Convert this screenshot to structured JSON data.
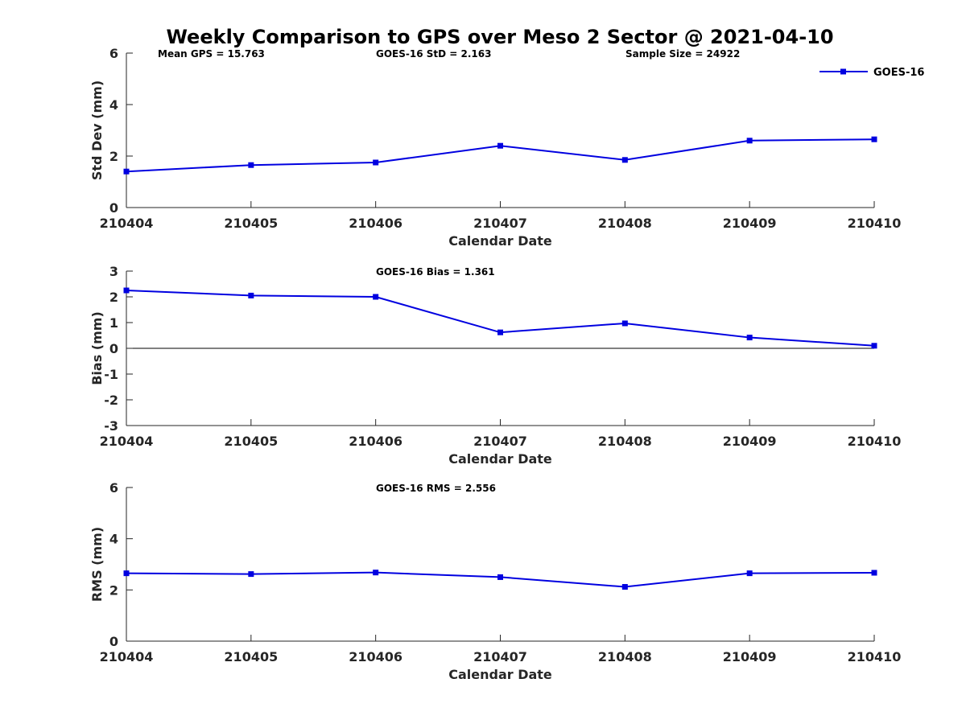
{
  "chart_data": {
    "title": "Weekly Comparison to GPS over Meso 2 Sector @ 2021-04-10",
    "type": "line",
    "categories": [
      "210404",
      "210405",
      "210406",
      "210407",
      "210408",
      "210409",
      "210410"
    ],
    "series_color": "#0000e0",
    "legend": {
      "label": "GOES-16",
      "placement": "top-right"
    },
    "panels": [
      {
        "id": "std",
        "ylabel": "Std Dev (mm)",
        "xlabel": "Calendar Date",
        "ylim": [
          0,
          6
        ],
        "yticks": [
          0,
          2,
          4,
          6
        ],
        "zero_line": false,
        "values": [
          1.4,
          1.65,
          1.75,
          2.4,
          1.85,
          2.6,
          2.65
        ],
        "annotations": [
          "Mean GPS = 15.763",
          "GOES-16 StD = 2.163",
          "Sample Size = 24922"
        ]
      },
      {
        "id": "bias",
        "ylabel": "Bias (mm)",
        "xlabel": "Calendar Date",
        "ylim": [
          -3,
          3
        ],
        "yticks": [
          -3,
          -2,
          -1,
          0,
          1,
          2,
          3
        ],
        "zero_line": true,
        "values": [
          2.25,
          2.05,
          2.0,
          0.62,
          0.97,
          0.42,
          0.1
        ],
        "annotations": [
          "GOES-16 Bias  = 1.361"
        ]
      },
      {
        "id": "rms",
        "ylabel": "RMS (mm)",
        "xlabel": "Calendar Date",
        "ylim": [
          0,
          6
        ],
        "yticks": [
          0,
          2,
          4,
          6
        ],
        "zero_line": false,
        "values": [
          2.65,
          2.62,
          2.68,
          2.5,
          2.12,
          2.65,
          2.67
        ],
        "annotations": [
          "GOES-16 RMS = 2.556"
        ]
      }
    ]
  }
}
